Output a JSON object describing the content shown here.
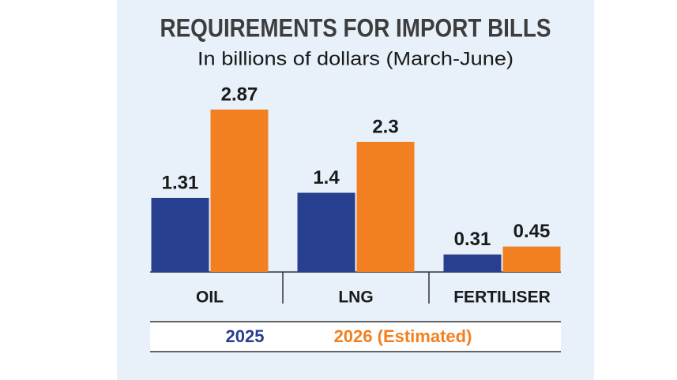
{
  "chart_data": {
    "type": "bar",
    "title": "REQUIREMENTS FOR IMPORT BILLS",
    "subtitle": "In billions of dollars (March-June)",
    "categories": [
      "OIL",
      "LNG",
      "FERTILISER"
    ],
    "series": [
      {
        "name": "2025",
        "color": "#283f8f",
        "values": [
          1.31,
          1.4,
          0.31
        ]
      },
      {
        "name": "2026 (Estimated)",
        "color": "#f28021",
        "values": [
          2.87,
          2.3,
          0.45
        ]
      }
    ]
  }
}
